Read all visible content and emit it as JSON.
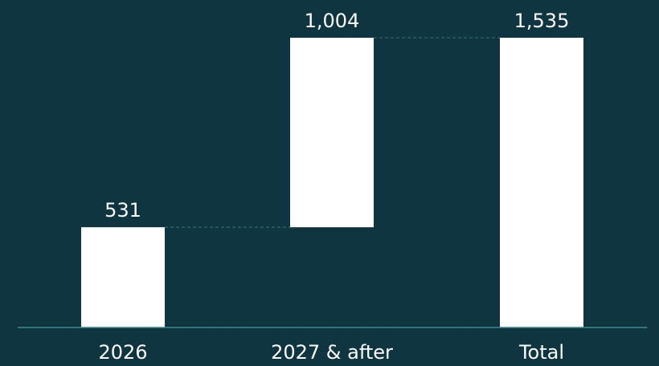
{
  "chart_data": {
    "type": "waterfall",
    "categories": [
      "2026",
      "2027 & after",
      "Total"
    ],
    "values": [
      531,
      1004,
      1535
    ],
    "value_labels": [
      "531",
      "1,004",
      "1,535"
    ],
    "measures": [
      "relative",
      "relative",
      "total"
    ],
    "color": "#ffffff"
  }
}
